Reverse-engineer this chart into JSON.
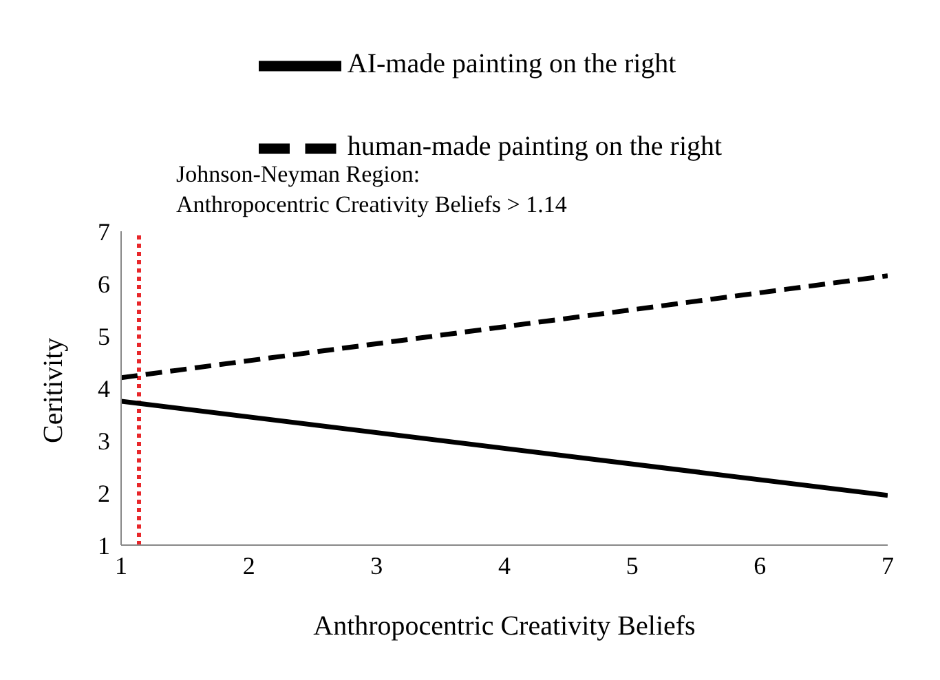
{
  "chart_data": {
    "type": "line",
    "xlabel": "Anthropocentric Creativity Beliefs",
    "ylabel": "Ceritivity",
    "annotations": [
      "Johnson-Neyman Region:",
      "Anthropocentric Creativity Beliefs > 1.14"
    ],
    "x": [
      1,
      7
    ],
    "series": [
      {
        "name": "human-made painting on the right",
        "color": "#000000",
        "values": [
          4.2,
          6.15
        ],
        "line_style": "dashed"
      },
      {
        "name": "AI-made painting on the right",
        "color": "#000000",
        "values": [
          3.75,
          1.95
        ],
        "line_style": "solid"
      }
    ],
    "xlim": [
      1,
      7
    ],
    "xticks": [
      1,
      2,
      3,
      4,
      5,
      6,
      7
    ],
    "ylim": [
      1,
      7
    ],
    "yticks": [
      1,
      2,
      3,
      4,
      5,
      6,
      7
    ],
    "ref_lines": [
      {
        "axis": "x",
        "value": 1.14,
        "color": "#e8262a",
        "line_style": "dotted"
      }
    ],
    "grid": false,
    "legend": "top",
    "marker": "none"
  }
}
